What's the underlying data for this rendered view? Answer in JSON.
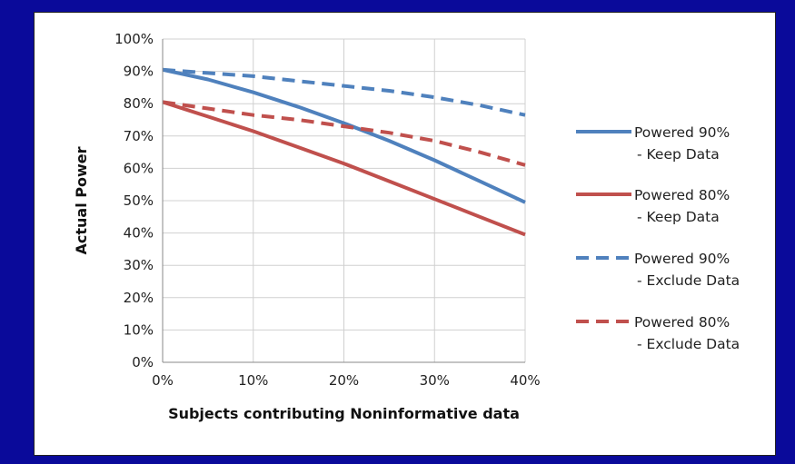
{
  "chart_data": {
    "type": "line",
    "title": "",
    "xlabel": "Subjects contributing Noninformative data",
    "ylabel": "Actual Power",
    "xlim": [
      0,
      40
    ],
    "ylim": [
      0,
      100
    ],
    "x_ticks": [
      "0%",
      "10%",
      "20%",
      "30%",
      "40%"
    ],
    "y_ticks": [
      "0%",
      "10%",
      "20%",
      "30%",
      "40%",
      "50%",
      "60%",
      "70%",
      "80%",
      "90%",
      "100%"
    ],
    "grid": "on",
    "legend_position": "right",
    "x": [
      0,
      5,
      10,
      15,
      20,
      25,
      30,
      35,
      40
    ],
    "series": [
      {
        "name_line1": "Powered 90%",
        "name_line2": "- Keep Data",
        "color": "#4f81bd",
        "dash": "solid",
        "values": [
          90.5,
          87.5,
          83.5,
          79,
          74,
          68.5,
          62.5,
          56,
          49.5
        ]
      },
      {
        "name_line1": "Powered 80%",
        "name_line2": "- Keep Data",
        "color": "#c0504d",
        "dash": "solid",
        "values": [
          80.5,
          76,
          71.5,
          66.5,
          61.5,
          56,
          50.5,
          45,
          39.5
        ]
      },
      {
        "name_line1": "Powered 90%",
        "name_line2": "- Exclude Data",
        "color": "#4f81bd",
        "dash": "dashed",
        "values": [
          90.5,
          89.5,
          88.5,
          87,
          85.5,
          84,
          82,
          79.5,
          76.5
        ]
      },
      {
        "name_line1": "Powered 80%",
        "name_line2": "- Exclude Data",
        "color": "#c0504d",
        "dash": "dashed",
        "values": [
          80.5,
          78.5,
          76.5,
          75,
          73,
          71,
          68.5,
          65,
          61
        ]
      }
    ]
  }
}
